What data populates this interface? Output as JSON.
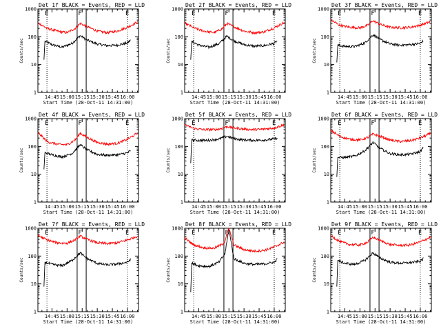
{
  "figure": {
    "y_axis_label": "Counts/sec",
    "x_axis_label": "Start Time (28-Oct-11 14:31:00)"
  },
  "chart_data": [
    {
      "type": "line",
      "title": "Det 1f BLACK = Events, RED = LLD",
      "xlabel": "Start Time (28-Oct-11 14:31:00)",
      "ylabel": "Counts/sec",
      "log_y": true,
      "xlim": [
        "14:31",
        "16:11"
      ],
      "ylim": [
        1,
        1000
      ],
      "x_ticks": [
        "14:45",
        "15:00",
        "15:15",
        "15:30",
        "15:45",
        "16:00"
      ],
      "y_ticks": [
        "1",
        "10",
        "100",
        "1000"
      ],
      "markers": [
        "E",
        "F",
        "E"
      ],
      "marker_times": [
        "14:40",
        "15:13",
        "16:00"
      ],
      "lines_solid": [
        "15:10",
        "15:19"
      ],
      "lines_dotted": [
        "14:40",
        "16:00"
      ],
      "series": [
        {
          "color": "#000000",
          "x": [
            "14:37",
            "14:38",
            "14:45",
            "14:55",
            "15:05",
            "15:13",
            "15:20",
            "15:30",
            "15:40",
            "15:50",
            "16:00",
            "16:03"
          ],
          "values": [
            15,
            70,
            52,
            42,
            58,
            110,
            75,
            55,
            48,
            50,
            60,
            75
          ]
        },
        {
          "color": "#ff0000",
          "x": [
            "14:31",
            "14:40",
            "14:50",
            "15:00",
            "15:08",
            "15:13",
            "15:20",
            "15:30",
            "15:40",
            "15:50",
            "16:00",
            "16:10"
          ],
          "values": [
            320,
            200,
            160,
            140,
            200,
            300,
            230,
            160,
            140,
            160,
            220,
            340
          ]
        }
      ]
    },
    {
      "type": "line",
      "title": "Det 2f BLACK = Events, RED = LLD",
      "xlabel": "Start Time (28-Oct-11 14:31:00)",
      "ylabel": "Counts/sec",
      "log_y": true,
      "xlim": [
        "14:31",
        "16:11"
      ],
      "ylim": [
        1,
        1000
      ],
      "x_ticks": [
        "14:45",
        "15:00",
        "15:15",
        "15:30",
        "15:45",
        "16:00"
      ],
      "y_ticks": [
        "1",
        "10",
        "100",
        "1000"
      ],
      "markers": [
        "E",
        "F",
        "E"
      ],
      "marker_times": [
        "14:40",
        "15:13",
        "16:00"
      ],
      "lines_solid": [
        "15:10",
        "15:19"
      ],
      "lines_dotted": [
        "14:40",
        "16:00"
      ],
      "series": [
        {
          "color": "#000000",
          "x": [
            "14:37",
            "14:38",
            "14:45",
            "14:55",
            "15:05",
            "15:13",
            "15:20",
            "15:30",
            "15:40",
            "15:50",
            "16:00",
            "16:03"
          ],
          "values": [
            15,
            68,
            50,
            42,
            56,
            105,
            72,
            52,
            46,
            48,
            58,
            72
          ]
        },
        {
          "color": "#ff0000",
          "x": [
            "14:31",
            "14:40",
            "14:50",
            "15:00",
            "15:08",
            "15:13",
            "15:20",
            "15:30",
            "15:40",
            "15:50",
            "16:00",
            "16:10"
          ],
          "values": [
            310,
            210,
            160,
            140,
            190,
            300,
            230,
            160,
            140,
            150,
            210,
            330
          ]
        }
      ]
    },
    {
      "type": "line",
      "title": "Det 3f BLACK = Events, RED = LLD",
      "xlabel": "Start Time (28-Oct-11 14:31:00)",
      "ylabel": "Counts/sec",
      "log_y": true,
      "xlim": [
        "14:31",
        "16:11"
      ],
      "ylim": [
        1,
        1000
      ],
      "x_ticks": [
        "14:45",
        "15:00",
        "15:15",
        "15:30",
        "15:45",
        "16:00"
      ],
      "y_ticks": [
        "1",
        "10",
        "100",
        "1000"
      ],
      "markers": [
        "E",
        "F",
        "E"
      ],
      "marker_times": [
        "14:40",
        "15:13",
        "16:00"
      ],
      "lines_solid": [
        "15:10",
        "15:19"
      ],
      "lines_dotted": [
        "14:40",
        "16:00"
      ],
      "series": [
        {
          "color": "#000000",
          "x": [
            "14:37",
            "14:38",
            "14:45",
            "14:55",
            "15:05",
            "15:13",
            "15:20",
            "15:30",
            "15:40",
            "15:50",
            "16:00",
            "16:03"
          ],
          "values": [
            12,
            50,
            45,
            45,
            60,
            120,
            80,
            55,
            50,
            52,
            58,
            72
          ]
        },
        {
          "color": "#ff0000",
          "x": [
            "14:31",
            "14:40",
            "14:50",
            "15:00",
            "15:08",
            "15:13",
            "15:20",
            "15:30",
            "15:40",
            "15:50",
            "16:00",
            "16:10"
          ],
          "values": [
            400,
            260,
            220,
            210,
            260,
            380,
            280,
            220,
            210,
            220,
            260,
            350
          ]
        }
      ]
    },
    {
      "type": "line",
      "title": "Det 4f BLACK = Events, RED = LLD",
      "xlabel": "Start Time (28-Oct-11 14:31:00)",
      "ylabel": "Counts/sec",
      "log_y": true,
      "xlim": [
        "14:31",
        "16:11"
      ],
      "ylim": [
        1,
        1000
      ],
      "x_ticks": [
        "14:45",
        "15:00",
        "15:15",
        "15:30",
        "15:45",
        "16:00"
      ],
      "y_ticks": [
        "1",
        "10",
        "100",
        "1000"
      ],
      "markers": [
        "E",
        "F",
        "E"
      ],
      "marker_times": [
        "14:40",
        "15:13",
        "16:00"
      ],
      "lines_solid": [
        "15:10",
        "15:19"
      ],
      "lines_dotted": [
        "14:40",
        "16:00"
      ],
      "series": [
        {
          "color": "#000000",
          "x": [
            "14:37",
            "14:38",
            "14:45",
            "14:55",
            "15:05",
            "15:13",
            "15:20",
            "15:30",
            "15:40",
            "15:50",
            "16:00",
            "16:03"
          ],
          "values": [
            15,
            60,
            50,
            42,
            56,
            115,
            75,
            52,
            48,
            50,
            58,
            70
          ]
        },
        {
          "color": "#ff0000",
          "x": [
            "14:31",
            "14:40",
            "14:50",
            "15:00",
            "15:08",
            "15:13",
            "15:20",
            "15:30",
            "15:40",
            "15:50",
            "16:00",
            "16:10"
          ],
          "values": [
            320,
            150,
            120,
            115,
            170,
            300,
            210,
            140,
            120,
            130,
            180,
            300
          ]
        }
      ]
    },
    {
      "type": "line",
      "title": "Det 5f BLACK = Events, RED = LLD",
      "xlabel": "Start Time (28-Oct-11 14:31:00)",
      "ylabel": "Counts/sec",
      "log_y": true,
      "xlim": [
        "14:31",
        "16:11"
      ],
      "ylim": [
        1,
        1000
      ],
      "x_ticks": [
        "14:45",
        "15:00",
        "15:15",
        "15:30",
        "15:45",
        "16:00"
      ],
      "y_ticks": [
        "1",
        "10",
        "100",
        "1000"
      ],
      "markers": [
        "E",
        "F",
        "E"
      ],
      "marker_times": [
        "14:40",
        "15:13",
        "16:00"
      ],
      "lines_solid": [
        "15:10",
        "15:19"
      ],
      "lines_dotted": [
        "14:40",
        "16:00"
      ],
      "series": [
        {
          "color": "#000000",
          "x": [
            "14:37",
            "14:38",
            "14:45",
            "14:55",
            "15:05",
            "15:13",
            "15:20",
            "15:30",
            "15:40",
            "15:50",
            "16:00",
            "16:03"
          ],
          "values": [
            25,
            170,
            165,
            165,
            185,
            230,
            190,
            170,
            165,
            170,
            185,
            200
          ]
        },
        {
          "color": "#ff0000",
          "x": [
            "14:31",
            "14:40",
            "14:50",
            "15:00",
            "15:08",
            "15:13",
            "15:20",
            "15:30",
            "15:40",
            "15:50",
            "16:00",
            "16:10"
          ],
          "values": [
            600,
            440,
            400,
            400,
            440,
            520,
            460,
            420,
            400,
            420,
            460,
            600
          ]
        }
      ]
    },
    {
      "type": "line",
      "title": "Det 6f BLACK = Events, RED = LLD",
      "xlabel": "Start Time (28-Oct-11 14:31:00)",
      "ylabel": "Counts/sec",
      "log_y": true,
      "xlim": [
        "14:31",
        "16:11"
      ],
      "ylim": [
        1,
        1000
      ],
      "x_ticks": [
        "14:45",
        "15:00",
        "15:15",
        "15:30",
        "15:45",
        "16:00"
      ],
      "y_ticks": [
        "1",
        "10",
        "100",
        "1000"
      ],
      "markers": [
        "E",
        "F",
        "E"
      ],
      "marker_times": [
        "14:40",
        "15:13",
        "16:00"
      ],
      "lines_solid": [
        "15:10",
        "15:19"
      ],
      "lines_dotted": [
        "14:40",
        "16:00"
      ],
      "series": [
        {
          "color": "#000000",
          "x": [
            "14:37",
            "14:38",
            "14:45",
            "14:55",
            "15:05",
            "15:13",
            "15:20",
            "15:30",
            "15:40",
            "15:50",
            "16:00",
            "16:03"
          ],
          "values": [
            8,
            40,
            40,
            45,
            70,
            140,
            85,
            55,
            50,
            52,
            65,
            90
          ]
        },
        {
          "color": "#ff0000",
          "x": [
            "14:31",
            "14:40",
            "14:50",
            "15:00",
            "15:08",
            "15:13",
            "15:20",
            "15:30",
            "15:40",
            "15:50",
            "16:00",
            "16:10"
          ],
          "values": [
            380,
            230,
            180,
            170,
            210,
            280,
            230,
            170,
            150,
            160,
            200,
            290
          ]
        }
      ]
    },
    {
      "type": "line",
      "title": "Det 7f BLACK = Events, RED = LLD",
      "xlabel": "Start Time (28-Oct-11 14:31:00)",
      "ylabel": "Counts/sec",
      "log_y": true,
      "xlim": [
        "14:31",
        "16:11"
      ],
      "ylim": [
        1,
        1000
      ],
      "x_ticks": [
        "14:45",
        "15:00",
        "15:15",
        "15:30",
        "15:45",
        "16:00"
      ],
      "y_ticks": [
        "1",
        "10",
        "100",
        "1000"
      ],
      "markers": [
        "E",
        "F",
        "E"
      ],
      "marker_times": [
        "14:40",
        "15:13",
        "16:00"
      ],
      "lines_solid": [
        "15:10",
        "15:19"
      ],
      "lines_dotted": [
        "14:40",
        "16:00"
      ],
      "series": [
        {
          "color": "#000000",
          "x": [
            "14:37",
            "14:38",
            "14:45",
            "14:55",
            "15:05",
            "15:13",
            "15:20",
            "15:30",
            "15:40",
            "15:50",
            "16:00",
            "16:03"
          ],
          "values": [
            8,
            60,
            50,
            45,
            70,
            130,
            80,
            55,
            48,
            52,
            60,
            75
          ]
        },
        {
          "color": "#ff0000",
          "x": [
            "14:31",
            "14:40",
            "14:50",
            "15:00",
            "15:08",
            "15:13",
            "15:20",
            "15:30",
            "15:40",
            "15:50",
            "16:00",
            "16:10"
          ],
          "values": [
            550,
            380,
            300,
            290,
            380,
            520,
            400,
            300,
            280,
            300,
            380,
            520
          ]
        }
      ]
    },
    {
      "type": "line",
      "title": "Det 8f BLACK = Events, RED = LLD",
      "xlabel": "Start Time (28-Oct-11 14:31:00)",
      "ylabel": "Counts/sec",
      "log_y": true,
      "xlim": [
        "14:31",
        "16:11"
      ],
      "ylim": [
        1,
        1000
      ],
      "x_ticks": [
        "14:45",
        "15:00",
        "15:15",
        "15:30",
        "15:45",
        "16:00"
      ],
      "y_ticks": [
        "1",
        "10",
        "100",
        "1000"
      ],
      "markers": [
        "E",
        "F",
        "E"
      ],
      "marker_times": [
        "14:40",
        "15:13",
        "16:00"
      ],
      "lines_solid": [
        "15:10",
        "15:19"
      ],
      "lines_dotted": [
        "14:40",
        "16:00"
      ],
      "series": [
        {
          "color": "#000000",
          "x": [
            "14:37",
            "14:38",
            "14:45",
            "14:55",
            "15:05",
            "15:11",
            "15:15",
            "15:20",
            "15:30",
            "15:40",
            "15:50",
            "16:00",
            "16:03"
          ],
          "values": [
            5,
            55,
            45,
            42,
            60,
            120,
            900,
            80,
            55,
            50,
            52,
            60,
            78
          ]
        },
        {
          "color": "#ff0000",
          "x": [
            "14:31",
            "14:40",
            "14:50",
            "15:00",
            "15:08",
            "15:11",
            "15:15",
            "15:20",
            "15:30",
            "15:40",
            "15:50",
            "16:00",
            "16:10"
          ],
          "values": [
            450,
            250,
            200,
            190,
            260,
            340,
            1000,
            250,
            170,
            150,
            160,
            210,
            320
          ]
        }
      ]
    },
    {
      "type": "line",
      "title": "Det 9f BLACK = Events, RED = LLD",
      "xlabel": "Start Time (28-Oct-11 14:31:00)",
      "ylabel": "Counts/sec",
      "log_y": true,
      "xlim": [
        "14:31",
        "16:11"
      ],
      "ylim": [
        1,
        1000
      ],
      "x_ticks": [
        "14:45",
        "15:00",
        "15:15",
        "15:30",
        "15:45",
        "16:00"
      ],
      "y_ticks": [
        "1",
        "10",
        "100",
        "1000"
      ],
      "markers": [
        "E",
        "F",
        "E"
      ],
      "marker_times": [
        "14:40",
        "15:13",
        "16:00"
      ],
      "lines_solid": [
        "15:10",
        "15:19"
      ],
      "lines_dotted": [
        "14:40",
        "16:00"
      ],
      "series": [
        {
          "color": "#000000",
          "x": [
            "14:37",
            "14:38",
            "14:45",
            "14:55",
            "15:05",
            "15:13",
            "15:20",
            "15:30",
            "15:40",
            "15:50",
            "16:00",
            "16:03"
          ],
          "values": [
            8,
            70,
            55,
            50,
            70,
            130,
            85,
            60,
            55,
            58,
            65,
            80
          ]
        },
        {
          "color": "#ff0000",
          "x": [
            "14:31",
            "14:40",
            "14:50",
            "15:00",
            "15:08",
            "15:13",
            "15:20",
            "15:30",
            "15:40",
            "15:50",
            "16:00",
            "16:10"
          ],
          "values": [
            550,
            330,
            260,
            250,
            320,
            480,
            360,
            260,
            240,
            250,
            320,
            480
          ]
        }
      ]
    }
  ]
}
